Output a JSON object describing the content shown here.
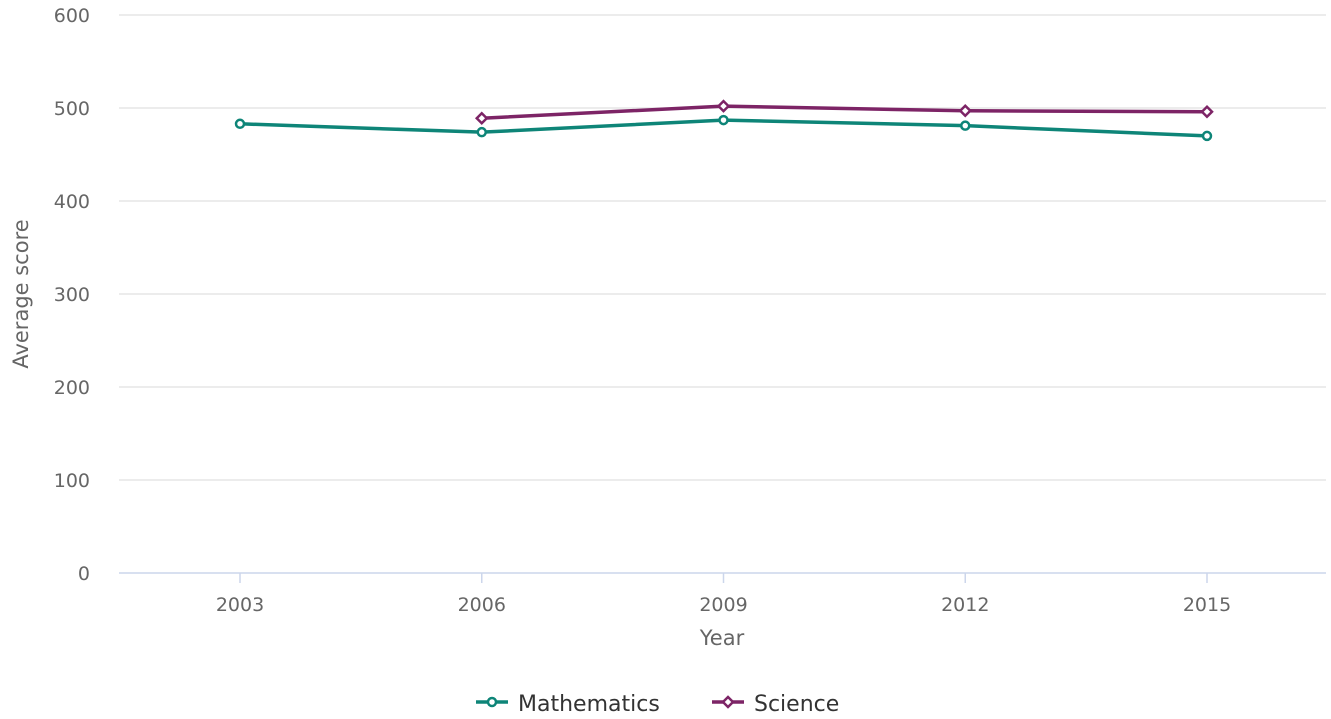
{
  "chart_data": {
    "type": "line",
    "title": "",
    "xlabel": "Year",
    "ylabel": "Average score",
    "categories": [
      "2003",
      "2006",
      "2009",
      "2012",
      "2015"
    ],
    "ylim": [
      0,
      600
    ],
    "yticks": [
      "0",
      "100",
      "200",
      "300",
      "400",
      "500",
      "600"
    ],
    "grid": true,
    "legend_position": "bottom-center",
    "series": [
      {
        "name": "Mathematics",
        "color": "#0e8578",
        "marker": "circle",
        "values": [
          483,
          474,
          487,
          481,
          470
        ]
      },
      {
        "name": "Science",
        "color": "#7d2466",
        "marker": "diamond",
        "values": [
          null,
          489,
          502,
          497,
          496
        ]
      }
    ]
  }
}
